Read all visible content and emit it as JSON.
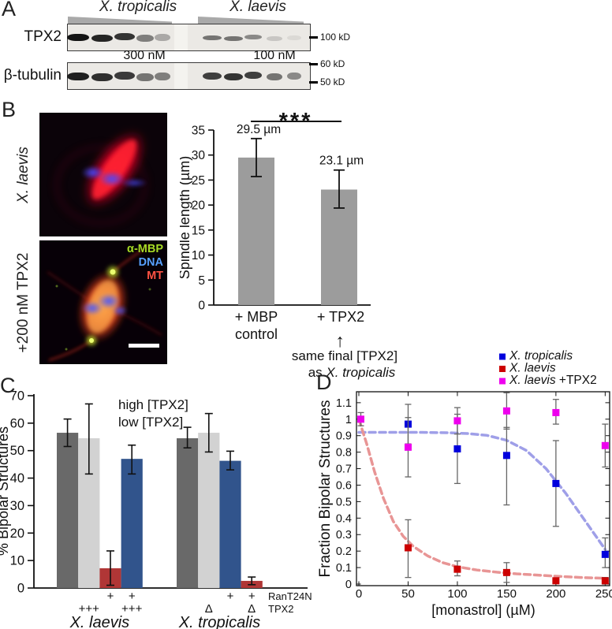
{
  "panelA": {
    "label": "A",
    "species": [
      "X. tropicalis",
      "X. laevis"
    ],
    "rows": [
      {
        "label": "TPX2",
        "left_bands": [
          1.0,
          0.92,
          0.85,
          0.5,
          0.3
        ],
        "right_bands": [
          0.55,
          0.55,
          0.45,
          0.16,
          0.07
        ]
      },
      {
        "label": "β-tubulin",
        "left_bands": [
          0.95,
          0.88,
          0.82,
          0.55,
          0.5
        ],
        "right_bands": [
          0.8,
          0.85,
          0.8,
          0.55,
          0.45
        ]
      }
    ],
    "concentrations": [
      "300 nM",
      "100 nM"
    ],
    "markers": [
      {
        "label": "100 kD"
      },
      {
        "label": "60 kD"
      },
      {
        "label": "50 kD"
      }
    ]
  },
  "panelB": {
    "label": "B",
    "image1_side_label": "X. laevis",
    "image2_side_label": "+200 nM TPX2",
    "overlay_labels": [
      {
        "text": "α-MBP",
        "color": "#a6d926"
      },
      {
        "text": "DNA",
        "color": "#58a0ff"
      },
      {
        "text": "MT",
        "color": "#ff5244"
      }
    ]
  },
  "panelC": {
    "label": "C"
  },
  "panelD": {
    "label": "D"
  },
  "chart_data": [
    {
      "panel": "B",
      "type": "bar",
      "title": "",
      "ylabel": "Spindle length (µm)",
      "ylim": [
        0,
        35
      ],
      "yticks": [
        0,
        5,
        10,
        15,
        20,
        25,
        30,
        35
      ],
      "bar_color": "#9c9c9c",
      "bars": [
        {
          "label_lines": [
            "+ MBP",
            "control"
          ],
          "value": 29.5,
          "err_lo": 25.7,
          "err_hi": 33.3,
          "value_label": "29.5 µm"
        },
        {
          "label_lines": [
            "+ TPX2"
          ],
          "value": 23.1,
          "err_lo": 19.4,
          "err_hi": 27.0,
          "value_label": "23.1 µm"
        }
      ],
      "significance": "***",
      "arrow": "↑",
      "note_line1": "same final [TPX2]",
      "note_line2_plain": "as ",
      "note_line2_italic": "X. tropicalis"
    },
    {
      "panel": "C",
      "type": "grouped-bar",
      "ylabel": "% Bipolar Structures",
      "ylim": [
        0,
        70
      ],
      "yticks": [
        0,
        10,
        20,
        30,
        40,
        50,
        60,
        70
      ],
      "legend": [
        {
          "label": "high [TPX2]",
          "color": "#2e4f8e"
        },
        {
          "label": "low [TPX2]",
          "color": "#c02020"
        }
      ],
      "condition_rows": [
        "RanT24N",
        "TPX2"
      ],
      "groups": [
        {
          "label": "X. laevis",
          "bars": [
            {
              "value": 56.5,
              "lo": 51.5,
              "hi": 61.5,
              "color": "#696969",
              "ran": "",
              "tpx2": ""
            },
            {
              "value": 54.5,
              "lo": 41.5,
              "hi": 67.0,
              "color": "#d2d2d2",
              "ran": "",
              "tpx2": "+++"
            },
            {
              "value": 7.2,
              "lo": 1.0,
              "hi": 13.5,
              "color": "#b03636",
              "ran": "+",
              "tpx2": ""
            },
            {
              "value": 47.0,
              "lo": 41.5,
              "hi": 52.0,
              "color": "#31548c",
              "ran": "+",
              "tpx2": "+++"
            }
          ]
        },
        {
          "label": "X. tropicalis",
          "bars": [
            {
              "value": 54.5,
              "lo": 51.0,
              "hi": 58.5,
              "color": "#696969",
              "ran": "",
              "tpx2": ""
            },
            {
              "value": 56.5,
              "lo": 49.5,
              "hi": 63.5,
              "color": "#d2d2d2",
              "ran": "",
              "tpx2": "Δ"
            },
            {
              "value": 46.3,
              "lo": 43.0,
              "hi": 49.8,
              "color": "#31548c",
              "ran": "+",
              "tpx2": ""
            },
            {
              "value": 2.6,
              "lo": 1.2,
              "hi": 4.0,
              "color": "#b03636",
              "ran": "+",
              "tpx2": "Δ"
            }
          ]
        }
      ]
    },
    {
      "panel": "D",
      "type": "scatter",
      "xlabel": "[monastrol] (µM)",
      "ylabel": "Fraction Bipolar Structures",
      "xlim": [
        0,
        250
      ],
      "ylim": [
        0,
        1.1
      ],
      "xticks": [
        0,
        50,
        100,
        150,
        200,
        250
      ],
      "yticks": [
        0,
        0.1,
        0.2,
        0.3,
        0.4,
        0.5,
        0.6,
        0.7,
        0.8,
        0.9,
        1,
        1.1
      ],
      "series": [
        {
          "name_italic": "X. tropicalis",
          "name_plain": "",
          "color": "#0000dd",
          "fit_color": "#9f9fe8",
          "points": [
            {
              "x": 50,
              "y": 0.97,
              "lo": 0.85,
              "hi": 1.09
            },
            {
              "x": 100,
              "y": 0.82,
              "lo": 0.61,
              "hi": 1.03
            },
            {
              "x": 150,
              "y": 0.78,
              "lo": 0.48,
              "hi": 0.95
            },
            {
              "x": 200,
              "y": 0.61,
              "lo": 0.35,
              "hi": 0.87
            },
            {
              "x": 250,
              "y": 0.18,
              "lo": 0.1,
              "hi": 0.28
            }
          ],
          "fit": [
            [
              0,
              0.92
            ],
            [
              30,
              0.92
            ],
            [
              60,
              0.92
            ],
            [
              90,
              0.918
            ],
            [
              110,
              0.913
            ],
            [
              130,
              0.902
            ],
            [
              150,
              0.872
            ],
            [
              170,
              0.81
            ],
            [
              190,
              0.7
            ],
            [
              210,
              0.55
            ],
            [
              230,
              0.38
            ],
            [
              250,
              0.21
            ]
          ]
        },
        {
          "name_italic": "X. laevis",
          "name_plain": "",
          "color": "#cc0000",
          "fit_color": "#e89595",
          "points": [
            {
              "x": 50,
              "y": 0.22,
              "lo": 0.04,
              "hi": 0.39
            },
            {
              "x": 100,
              "y": 0.09,
              "lo": 0.05,
              "hi": 0.14
            },
            {
              "x": 150,
              "y": 0.07,
              "lo": 0.01,
              "hi": 0.13
            },
            {
              "x": 200,
              "y": 0.02,
              "lo": 0.02,
              "hi": 0.02
            },
            {
              "x": 250,
              "y": 0.02,
              "lo": 0.0,
              "hi": 0.04
            }
          ],
          "fit": [
            [
              0,
              1.0
            ],
            [
              8,
              0.85
            ],
            [
              16,
              0.68
            ],
            [
              25,
              0.52
            ],
            [
              35,
              0.38
            ],
            [
              45,
              0.29
            ],
            [
              55,
              0.23
            ],
            [
              70,
              0.17
            ],
            [
              85,
              0.13
            ],
            [
              100,
              0.105
            ],
            [
              120,
              0.085
            ],
            [
              140,
              0.072
            ],
            [
              160,
              0.062
            ],
            [
              180,
              0.055
            ],
            [
              200,
              0.048
            ],
            [
              225,
              0.04
            ],
            [
              250,
              0.035
            ]
          ]
        },
        {
          "name_italic": "X. laevis",
          "name_plain": " +TPX2",
          "color": "#ee00ee",
          "points": [
            {
              "x": 2,
              "y": 1.0,
              "lo": 0.96,
              "hi": 1.04
            },
            {
              "x": 50,
              "y": 0.83,
              "lo": 0.65,
              "hi": 1.01
            },
            {
              "x": 100,
              "y": 0.99,
              "lo": 0.91,
              "hi": 1.07
            },
            {
              "x": 150,
              "y": 1.05,
              "lo": 0.94,
              "hi": 1.16
            },
            {
              "x": 200,
              "y": 1.04,
              "lo": 0.97,
              "hi": 1.12
            },
            {
              "x": 250,
              "y": 0.84,
              "lo": 0.71,
              "hi": 0.97
            }
          ]
        }
      ]
    }
  ]
}
